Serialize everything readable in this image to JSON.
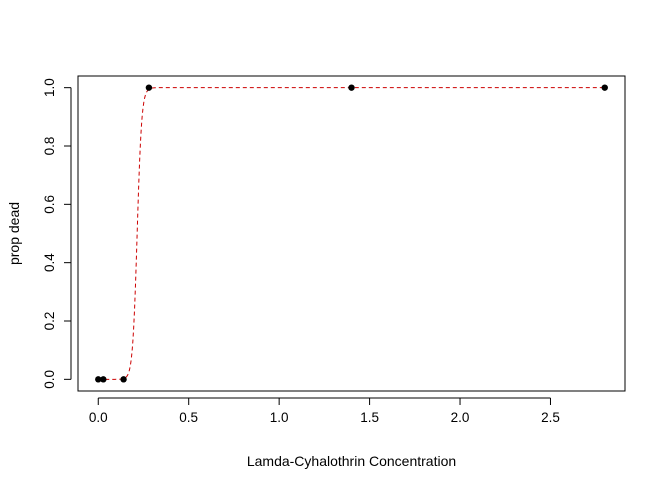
{
  "chart_data": {
    "type": "scatter",
    "title": "",
    "xlabel": "Lamda-Cyhalothrin Concentration",
    "ylabel": "prop dead",
    "xlim": [
      -0.112,
      2.912
    ],
    "ylim": [
      -0.04,
      1.04
    ],
    "x_ticks": [
      0.0,
      0.5,
      1.0,
      1.5,
      2.0,
      2.5
    ],
    "x_tick_labels": [
      "0.0",
      "0.5",
      "1.0",
      "1.5",
      "2.0",
      "2.5"
    ],
    "y_ticks": [
      0.0,
      0.2,
      0.4,
      0.6,
      0.8,
      1.0
    ],
    "y_tick_labels": [
      "0.0",
      "0.2",
      "0.4",
      "0.6",
      "0.8",
      "1.0"
    ],
    "grid": false,
    "legend": "none",
    "series": [
      {
        "kind": "points",
        "color": "#000000",
        "x": [
          0.0,
          0.028,
          0.14,
          0.28,
          1.4,
          2.8
        ],
        "y": [
          0.0,
          0.0,
          0.0,
          1.0,
          1.0,
          1.0
        ]
      },
      {
        "kind": "fitted-curve",
        "color": "#cc0000",
        "style": "dashed",
        "model": "logistic",
        "midpoint": 0.215,
        "slope": 80,
        "x_range": [
          0.0,
          2.8
        ]
      }
    ]
  }
}
